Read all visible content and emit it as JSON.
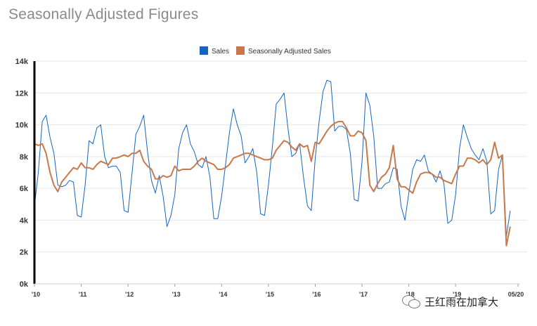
{
  "title": "Seasonally Adjusted Figures",
  "watermark": "王红雨在加拿大",
  "chart_data": {
    "type": "line",
    "legend": {
      "placement": "top-center",
      "items": [
        {
          "name": "Sales",
          "color": "#1565c0"
        },
        {
          "name": "Seasonally Adjusted Sales",
          "color": "#c8784a"
        }
      ]
    },
    "grid": true,
    "ylim": [
      0,
      14000
    ],
    "yticks": [
      {
        "value": 0,
        "label": "0k"
      },
      {
        "value": 2000,
        "label": "2k"
      },
      {
        "value": 4000,
        "label": "4k"
      },
      {
        "value": 6000,
        "label": "6k"
      },
      {
        "value": 8000,
        "label": "8k"
      },
      {
        "value": 10000,
        "label": "10k"
      },
      {
        "value": 12000,
        "label": "12k"
      },
      {
        "value": 14000,
        "label": "14k"
      }
    ],
    "xlim": [
      0,
      124
    ],
    "xticks": [
      {
        "value": 0,
        "label": "'10"
      },
      {
        "value": 12,
        "label": "'11"
      },
      {
        "value": 24,
        "label": "'12"
      },
      {
        "value": 36,
        "label": "'13"
      },
      {
        "value": 48,
        "label": "'14"
      },
      {
        "value": 60,
        "label": "'15"
      },
      {
        "value": 72,
        "label": "'16"
      },
      {
        "value": 84,
        "label": "'17"
      },
      {
        "value": 96,
        "label": "'18"
      },
      {
        "value": 108,
        "label": "'19"
      },
      {
        "value": 124,
        "label": "05/20"
      }
    ],
    "x_unit": "months since Jan 2010",
    "series": [
      {
        "name": "Sales",
        "color": "#1565c0",
        "values": [
          4900,
          7000,
          10200,
          10600,
          9200,
          8200,
          6200,
          6100,
          6200,
          6500,
          6400,
          4300,
          4200,
          6200,
          9000,
          8800,
          9800,
          10000,
          8000,
          7300,
          7400,
          7400,
          7000,
          4600,
          4500,
          6900,
          9400,
          9900,
          10600,
          8300,
          6500,
          5700,
          6800,
          5500,
          3600,
          4300,
          5600,
          8500,
          9500,
          10000,
          8800,
          8300,
          7500,
          7300,
          8000,
          6700,
          4100,
          4100,
          5500,
          7500,
          9500,
          11000,
          10000,
          9300,
          7600,
          8000,
          8500,
          7000,
          4400,
          4300,
          6200,
          8600,
          11300,
          11600,
          12000,
          9800,
          8000,
          8200,
          8800,
          6700,
          4900,
          4600,
          7900,
          10200,
          12100,
          12800,
          12700,
          9600,
          9900,
          9900,
          9700,
          8200,
          5300,
          5200,
          7700,
          12000,
          11200,
          9300,
          6000,
          6000,
          6300,
          6400,
          7300,
          7200,
          4900,
          4000,
          5700,
          7200,
          7800,
          7700,
          8100,
          7100,
          6900,
          6400,
          7100,
          6300,
          3800,
          4000,
          5600,
          8500,
          10000,
          9200,
          8500,
          8100,
          7800,
          8500,
          7700,
          4400,
          4600,
          7200,
          8100,
          3000,
          4600
        ]
      },
      {
        "name": "Seasonally Adjusted Sales",
        "color": "#c8784a",
        "values": [
          8800,
          8700,
          8800,
          8200,
          7000,
          6200,
          5800,
          6400,
          6700,
          7000,
          7300,
          7200,
          7600,
          7300,
          7300,
          7200,
          7500,
          7700,
          7600,
          7500,
          7900,
          7900,
          8000,
          8100,
          8000,
          8200,
          8200,
          8400,
          7700,
          7400,
          7200,
          6600,
          6600,
          6800,
          6700,
          6800,
          7400,
          7100,
          7200,
          7200,
          7200,
          7400,
          7700,
          7900,
          7700,
          7600,
          7500,
          7200,
          7200,
          7300,
          7500,
          7900,
          8000,
          8100,
          8200,
          8200,
          8100,
          8000,
          7900,
          7800,
          7800,
          7900,
          8400,
          8700,
          9000,
          8900,
          8600,
          8400,
          8800,
          8600,
          8700,
          7700,
          8900,
          8800,
          9200,
          9600,
          9900,
          10100,
          10200,
          10200,
          9800,
          9300,
          9300,
          9600,
          9500,
          9000,
          6200,
          5800,
          6300,
          6700,
          6900,
          7300,
          8700,
          6600,
          6100,
          6100,
          5900,
          5700,
          6400,
          6900,
          7000,
          7000,
          6900,
          6700,
          6700,
          6500,
          6400,
          6300,
          6900,
          7400,
          7400,
          7900,
          7900,
          7800,
          7600,
          7800,
          7500,
          7800,
          8900,
          7900,
          8100,
          2400,
          3600
        ]
      }
    ]
  }
}
